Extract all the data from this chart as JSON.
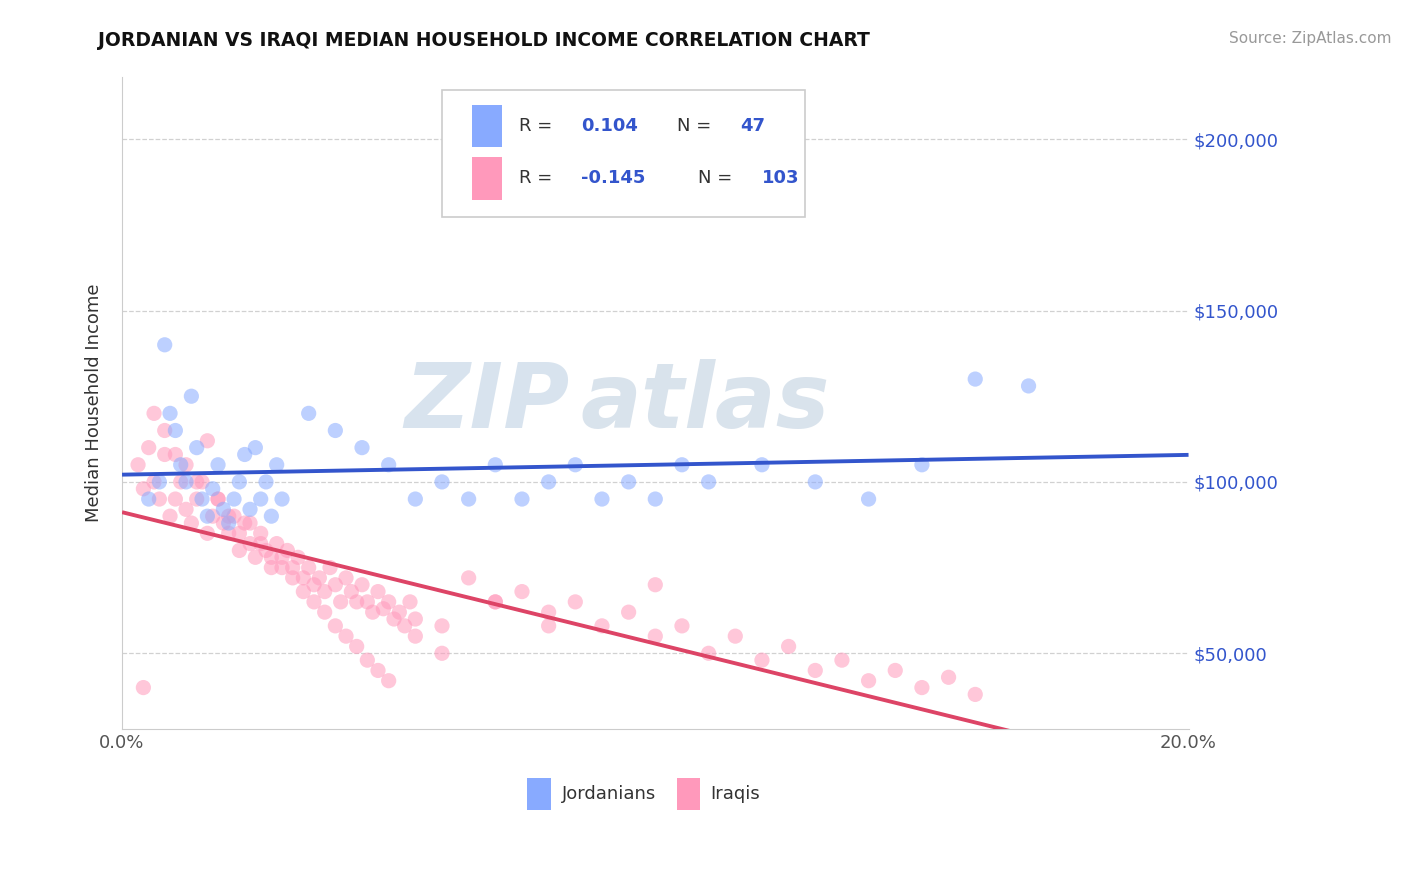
{
  "title": "JORDANIAN VS IRAQI MEDIAN HOUSEHOLD INCOME CORRELATION CHART",
  "source": "Source: ZipAtlas.com",
  "ylabel": "Median Household Income",
  "y_ticks": [
    50000,
    100000,
    150000,
    200000
  ],
  "y_tick_labels": [
    "$50,000",
    "$100,000",
    "$150,000",
    "$200,000"
  ],
  "x_range": [
    0.0,
    0.2
  ],
  "y_range": [
    28000,
    218000
  ],
  "jordanian_color": "#88aaff",
  "iraqi_color": "#ff99bb",
  "jordanian_line_color": "#3355cc",
  "iraqi_line_color": "#dd4466",
  "blue_text_color": "#3355cc",
  "watermark_color": "#c8d8e8",
  "title_color": "#111111",
  "source_color": "#999999",
  "grid_color": "#cccccc",
  "jordanian_seed_x": [
    0.005,
    0.007,
    0.008,
    0.009,
    0.01,
    0.011,
    0.012,
    0.013,
    0.014,
    0.015,
    0.016,
    0.017,
    0.018,
    0.019,
    0.02,
    0.021,
    0.022,
    0.023,
    0.024,
    0.025,
    0.026,
    0.027,
    0.028,
    0.029,
    0.03,
    0.035,
    0.04,
    0.045,
    0.05,
    0.055,
    0.06,
    0.065,
    0.07,
    0.075,
    0.08,
    0.085,
    0.09,
    0.095,
    0.1,
    0.105,
    0.11,
    0.12,
    0.13,
    0.14,
    0.15,
    0.16,
    0.17
  ],
  "jordanian_y": [
    95000,
    100000,
    140000,
    120000,
    115000,
    105000,
    100000,
    125000,
    110000,
    95000,
    90000,
    98000,
    105000,
    92000,
    88000,
    95000,
    100000,
    108000,
    92000,
    110000,
    95000,
    100000,
    90000,
    105000,
    95000,
    120000,
    115000,
    110000,
    105000,
    95000,
    100000,
    95000,
    105000,
    95000,
    100000,
    105000,
    95000,
    100000,
    95000,
    105000,
    100000,
    105000,
    100000,
    95000,
    105000,
    130000,
    128000
  ],
  "iraqi_seed_x": [
    0.003,
    0.004,
    0.005,
    0.006,
    0.007,
    0.008,
    0.009,
    0.01,
    0.011,
    0.012,
    0.013,
    0.014,
    0.015,
    0.016,
    0.017,
    0.018,
    0.019,
    0.02,
    0.021,
    0.022,
    0.023,
    0.024,
    0.025,
    0.026,
    0.027,
    0.028,
    0.029,
    0.03,
    0.031,
    0.032,
    0.033,
    0.034,
    0.035,
    0.036,
    0.037,
    0.038,
    0.039,
    0.04,
    0.041,
    0.042,
    0.043,
    0.044,
    0.045,
    0.046,
    0.047,
    0.048,
    0.049,
    0.05,
    0.051,
    0.052,
    0.053,
    0.054,
    0.055,
    0.06,
    0.065,
    0.07,
    0.075,
    0.08,
    0.085,
    0.09,
    0.095,
    0.1,
    0.105,
    0.11,
    0.115,
    0.12,
    0.125,
    0.13,
    0.135,
    0.14,
    0.145,
    0.15,
    0.155,
    0.16,
    0.004,
    0.006,
    0.008,
    0.01,
    0.012,
    0.014,
    0.016,
    0.018,
    0.02,
    0.022,
    0.024,
    0.026,
    0.028,
    0.03,
    0.032,
    0.034,
    0.036,
    0.038,
    0.04,
    0.042,
    0.044,
    0.046,
    0.048,
    0.05,
    0.055,
    0.06,
    0.07,
    0.08,
    0.1
  ],
  "iraqi_y": [
    105000,
    98000,
    110000,
    100000,
    95000,
    108000,
    90000,
    95000,
    100000,
    92000,
    88000,
    95000,
    100000,
    85000,
    90000,
    95000,
    88000,
    85000,
    90000,
    80000,
    88000,
    82000,
    78000,
    85000,
    80000,
    75000,
    82000,
    78000,
    80000,
    75000,
    78000,
    72000,
    75000,
    70000,
    72000,
    68000,
    75000,
    70000,
    65000,
    72000,
    68000,
    65000,
    70000,
    65000,
    62000,
    68000,
    63000,
    65000,
    60000,
    62000,
    58000,
    65000,
    60000,
    58000,
    72000,
    65000,
    68000,
    62000,
    65000,
    58000,
    62000,
    55000,
    58000,
    50000,
    55000,
    48000,
    52000,
    45000,
    48000,
    42000,
    45000,
    40000,
    43000,
    38000,
    40000,
    120000,
    115000,
    108000,
    105000,
    100000,
    112000,
    95000,
    90000,
    85000,
    88000,
    82000,
    78000,
    75000,
    72000,
    68000,
    65000,
    62000,
    58000,
    55000,
    52000,
    48000,
    45000,
    42000,
    55000,
    50000,
    65000,
    58000,
    70000
  ]
}
